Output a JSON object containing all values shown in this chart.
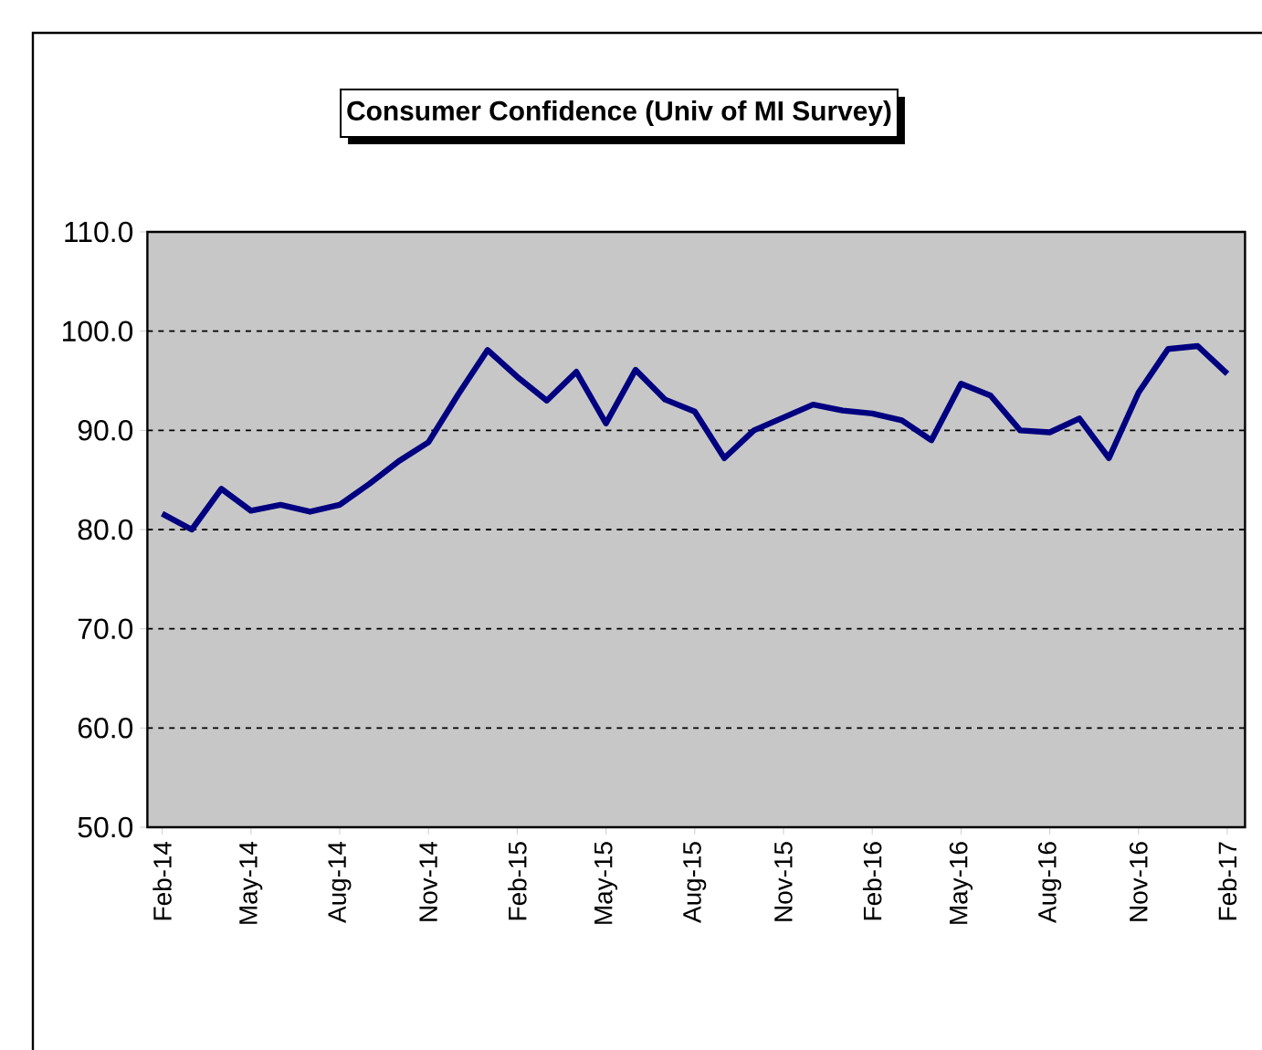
{
  "chart_data": {
    "type": "line",
    "title": "Consumer Confidence (Univ of MI Survey)",
    "categories": [
      "Feb-14",
      null,
      null,
      "May-14",
      null,
      null,
      "Aug-14",
      null,
      null,
      "Nov-14",
      null,
      null,
      "Feb-15",
      null,
      null,
      "May-15",
      null,
      null,
      "Aug-15",
      null,
      null,
      "Nov-15",
      null,
      null,
      "Feb-16",
      null,
      null,
      "May-16",
      null,
      null,
      "Aug-16",
      null,
      null,
      "Nov-16",
      null,
      null,
      "Feb-17"
    ],
    "values": [
      81.6,
      80.0,
      84.1,
      81.9,
      82.5,
      81.8,
      82.5,
      84.6,
      86.9,
      88.8,
      93.6,
      98.1,
      95.4,
      93.0,
      95.9,
      90.7,
      96.1,
      93.1,
      91.9,
      87.2,
      90.0,
      91.3,
      92.6,
      92.0,
      91.7,
      91.0,
      89.0,
      94.7,
      93.5,
      90.0,
      89.8,
      91.2,
      87.2,
      93.8,
      98.2,
      98.5,
      95.7
    ],
    "color": "#000080",
    "ylim": [
      50,
      110
    ],
    "yticks": [
      {
        "value": 50,
        "label": "50.0"
      },
      {
        "value": 60,
        "label": "60.0"
      },
      {
        "value": 70,
        "label": "70.0"
      },
      {
        "value": 80,
        "label": "80.0"
      },
      {
        "value": 90,
        "label": "90.0"
      },
      {
        "value": 100,
        "label": "100.0"
      },
      {
        "value": 110,
        "label": "110.0"
      }
    ],
    "grid": "y",
    "marker": "none",
    "line_style": "solid"
  }
}
